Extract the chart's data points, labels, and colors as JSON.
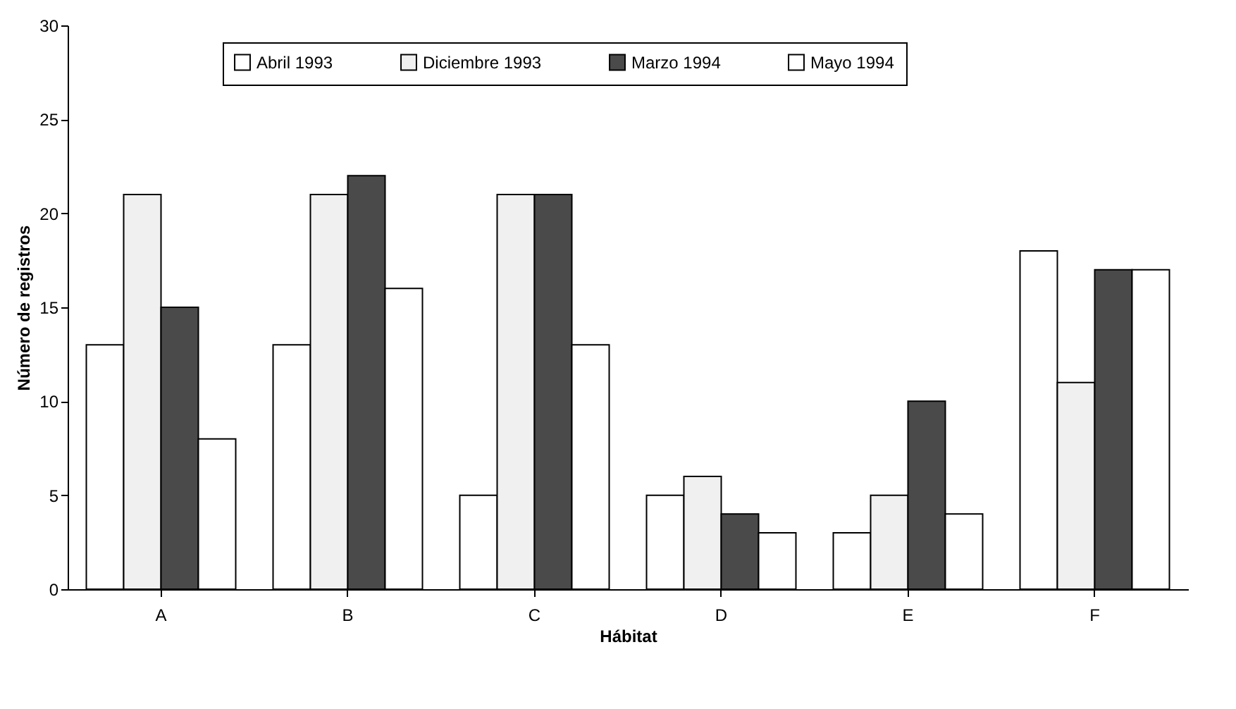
{
  "chart_data": {
    "type": "bar",
    "xlabel": "Hábitat",
    "ylabel": "Número de registros",
    "categories": [
      "A",
      "B",
      "C",
      "D",
      "E",
      "F"
    ],
    "series": [
      {
        "name": "Abril 1993",
        "color": "#ffffff",
        "values": [
          13,
          13,
          5,
          5,
          3,
          18
        ]
      },
      {
        "name": "Diciembre 1993",
        "color": "#f0f0f0",
        "values": [
          21,
          21,
          21,
          6,
          5,
          11
        ]
      },
      {
        "name": "Marzo 1994",
        "color": "#4a4a4a",
        "values": [
          15,
          22,
          21,
          4,
          10,
          17
        ]
      },
      {
        "name": "Mayo 1994",
        "color": "#ffffff",
        "values": [
          8,
          16,
          13,
          3,
          4,
          17
        ]
      }
    ],
    "ylim": [
      0,
      30
    ],
    "yticks": [
      0,
      5,
      10,
      15,
      20,
      25,
      30
    ],
    "grid": false,
    "legend": "top"
  }
}
